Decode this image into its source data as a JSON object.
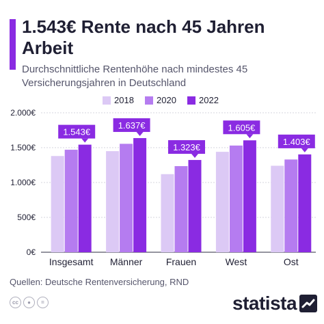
{
  "header": {
    "title": "1.543€ Rente nach 45 Jahren Arbeit",
    "subtitle": "Durchschnittliche Rentenhöhe nach mindestes 45 Versicherungsjahren in Deutschland"
  },
  "footer": {
    "source": "Quellen: Deutsche Rentenversicherung, RND",
    "brand": "statista",
    "license_icons": [
      "cc-icon",
      "attribution-icon",
      "no-derivatives-icon"
    ]
  },
  "colors": {
    "accent": "#8a2be2",
    "series_2018": "#dcc9f5",
    "series_2020": "#b57cf0",
    "series_2022": "#8a2be2",
    "callout": "#8a2be2",
    "text": "#1f1f33"
  },
  "chart_data": {
    "type": "bar",
    "categories": [
      "Insgesamt",
      "Männer",
      "Frauen",
      "West",
      "Ost"
    ],
    "series": [
      {
        "name": "2018",
        "values": [
          1380,
          1450,
          1120,
          1440,
          1240
        ]
      },
      {
        "name": "2020",
        "values": [
          1470,
          1555,
          1235,
          1530,
          1330
        ]
      },
      {
        "name": "2022",
        "values": [
          1543,
          1637,
          1323,
          1605,
          1403
        ]
      }
    ],
    "callouts": [
      "1.543€",
      "1.637€",
      "1.323€",
      "1.605€",
      "1.403€"
    ],
    "y_ticks": [
      {
        "value": 0,
        "label": "0€"
      },
      {
        "value": 500,
        "label": "500€"
      },
      {
        "value": 1000,
        "label": "1.000€"
      },
      {
        "value": 1500,
        "label": "1.500€"
      },
      {
        "value": 2000,
        "label": "2.000€"
      }
    ],
    "ylim": [
      0,
      2000
    ],
    "grid": true,
    "legend_position": "top-center",
    "xlabel": "",
    "ylabel": ""
  }
}
